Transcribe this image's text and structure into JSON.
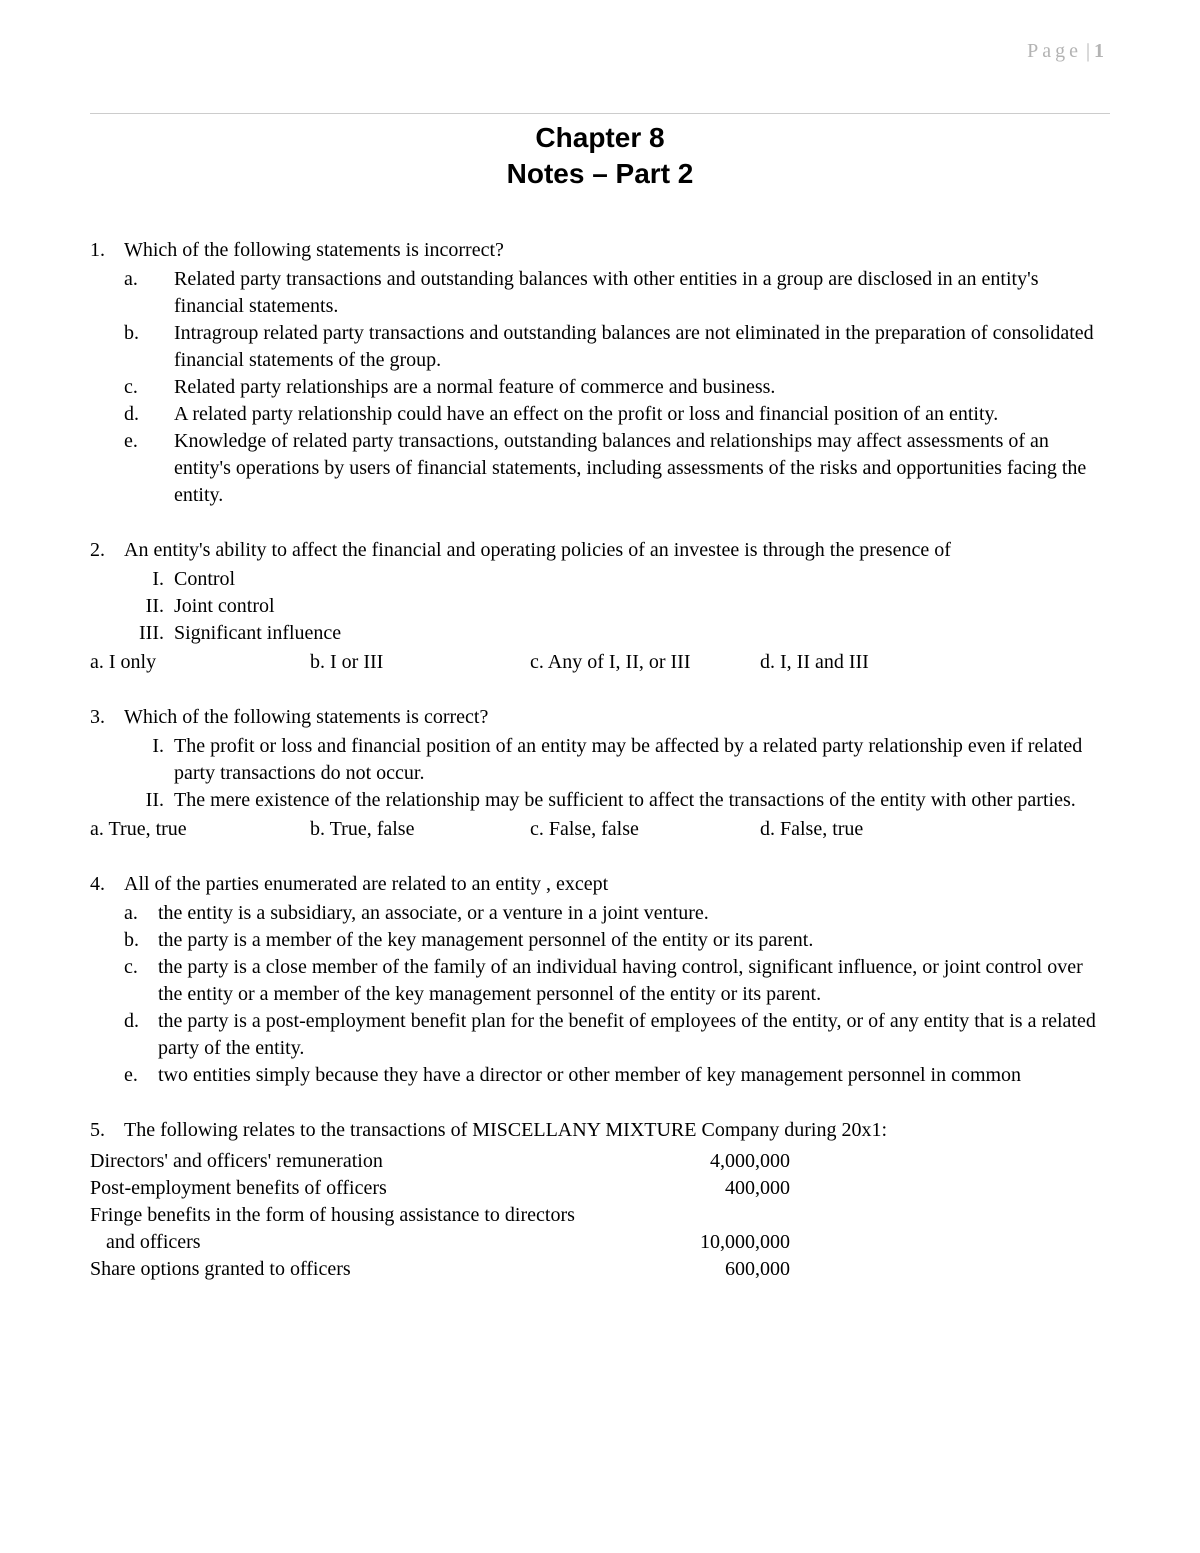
{
  "header": {
    "page_word": "Page",
    "separator": "|",
    "page_number": "1"
  },
  "title": {
    "line1": "Chapter 8",
    "line2": "Notes – Part 2"
  },
  "q1": {
    "num": "1.",
    "stem": "Which of the following statements is incorrect?",
    "a_l": "a.",
    "a_t": "Related party transactions and outstanding balances with other entities in a group are disclosed in an entity's financial statements.",
    "b_l": "b.",
    "b_t": "Intragroup related party transactions and outstanding balances are not eliminated in the preparation of consolidated financial statements of the group.",
    "c_l": "c.",
    "c_t": "Related party relationships are a normal feature of commerce and business.",
    "d_l": "d.",
    "d_t": "A related party relationship could have an effect on the profit or loss and financial position of an entity.",
    "e_l": "e.",
    "e_t": "Knowledge of related party transactions, outstanding balances and relationships may affect assessments of an entity's operations by users of financial statements, including assessments of the risks and opportunities facing the entity."
  },
  "q2": {
    "num": "2.",
    "stem": "An entity's ability to affect the financial and operating policies of an investee is through the presence of",
    "r1_n": "I.",
    "r1_t": "Control",
    "r2_n": "II.",
    "r2_t": "Joint control",
    "r3_n": "III.",
    "r3_t": "Significant influence",
    "c1": "a. I only",
    "c2": "b. I or III",
    "c3": "c. Any of I, II, or III",
    "c4": "d. I, II and III"
  },
  "q3": {
    "num": "3.",
    "stem": "Which of the following statements is correct?",
    "r1_n": "I.",
    "r1_t": "The profit or loss and financial position of an entity may be affected by a related party relationship even if related party transactions do not occur.",
    "r2_n": "II.",
    "r2_t": "The mere existence of the relationship may be sufficient to affect the transactions of the entity with other parties.",
    "c1": "a. True, true",
    "c2": "b. True, false",
    "c3": "c. False, false",
    "c4": "d. False, true"
  },
  "q4": {
    "num": "4.",
    "stem": "All of the parties enumerated are related to an entity , except",
    "a_l": "a.",
    "a_t": "the entity is a subsidiary, an associate, or a venture in a joint venture.",
    "b_l": "b.",
    "b_t": "the party is a member of the key management personnel of the entity or its parent.",
    "c_l": "c.",
    "c_t": "the party is a close member of the family of an individual having control, significant influence, or joint control over the entity or a member of the key management personnel of the entity or its parent.",
    "d_l": "d.",
    "d_t": "the party is a post-employment benefit plan for the benefit of employees of the entity, or of any entity that is a related party of the entity.",
    "e_l": "e.",
    "e_t": "two entities simply because they have a director or other member of key management personnel in common"
  },
  "q5": {
    "num": "5.",
    "stem": "The following relates to the transactions of MISCELLANY MIXTURE Company during 20x1:",
    "r1_l": "Directors' and officers' remuneration",
    "r1_v": "4,000,000",
    "r2_l": "Post-employment benefits of officers",
    "r2_v": "400,000",
    "r3_l": "Fringe benefits in  the form of housing assistance to directors",
    "r4_l": "and officers",
    "r4_v": "10,000,000",
    "r5_l": "Share options granted to officers",
    "r5_v": "600,000"
  }
}
